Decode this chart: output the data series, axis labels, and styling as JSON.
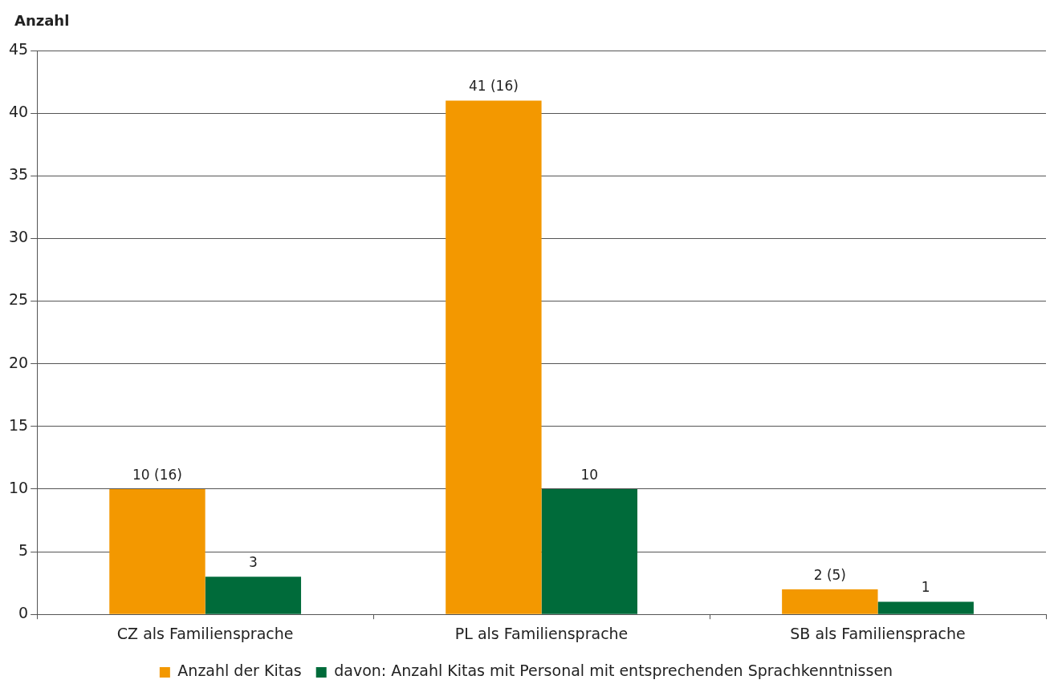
{
  "chart_data": {
    "type": "bar",
    "ylabel": "Anzahl",
    "categories": [
      "CZ als Familiensprache",
      "PL als Familiensprache",
      "SB als Familiensprache"
    ],
    "series": [
      {
        "name": "Anzahl der Kitas",
        "color": "#f39800",
        "values": [
          10,
          41,
          2
        ],
        "value_labels": [
          "10 (16)",
          "41 (16)",
          "2 (5)"
        ]
      },
      {
        "name": "davon: Anzahl Kitas mit Personal mit entsprechenden Sprachkenntnissen",
        "color": "#006b3a",
        "values": [
          3,
          10,
          1
        ],
        "value_labels": [
          "3",
          "10",
          "1"
        ]
      }
    ],
    "ylim": [
      0,
      45
    ],
    "yticks": [
      0,
      5,
      10,
      15,
      20,
      25,
      30,
      35,
      40,
      45
    ],
    "grid": "y",
    "legend": "bottom"
  }
}
